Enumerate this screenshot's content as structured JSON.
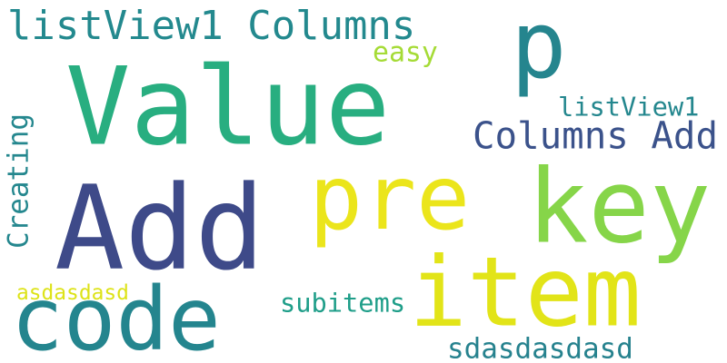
{
  "words": [
    {
      "id": "word-listview1-columns-top",
      "text": "listView1 Columns",
      "color": "#23898e"
    },
    {
      "id": "word-p",
      "text": "p",
      "color": "#25858e"
    },
    {
      "id": "word-easy",
      "text": "easy",
      "color": "#a5db36"
    },
    {
      "id": "word-value",
      "text": "Value",
      "color": "#28ae80"
    },
    {
      "id": "word-listview1",
      "text": "listView1",
      "color": "#24878e"
    },
    {
      "id": "word-columns-add",
      "text": "Columns Add",
      "color": "#3b528b"
    },
    {
      "id": "word-creating",
      "text": "Creating",
      "color": "#24878e"
    },
    {
      "id": "word-pre",
      "text": "pre",
      "color": "#ebe51b"
    },
    {
      "id": "word-key",
      "text": "key",
      "color": "#86d549"
    },
    {
      "id": "word-add",
      "text": "Add",
      "color": "#3e4a89"
    },
    {
      "id": "word-item",
      "text": "item",
      "color": "#e2e418"
    },
    {
      "id": "word-asdasdasd",
      "text": "asdasdasd",
      "color": "#dde318"
    },
    {
      "id": "word-subitems",
      "text": "subitems",
      "color": "#1f9e89"
    },
    {
      "id": "word-code",
      "text": "code",
      "color": "#24858e"
    },
    {
      "id": "word-sdasdasdasd",
      "text": "sdasdasdasd",
      "color": "#26828e"
    }
  ]
}
